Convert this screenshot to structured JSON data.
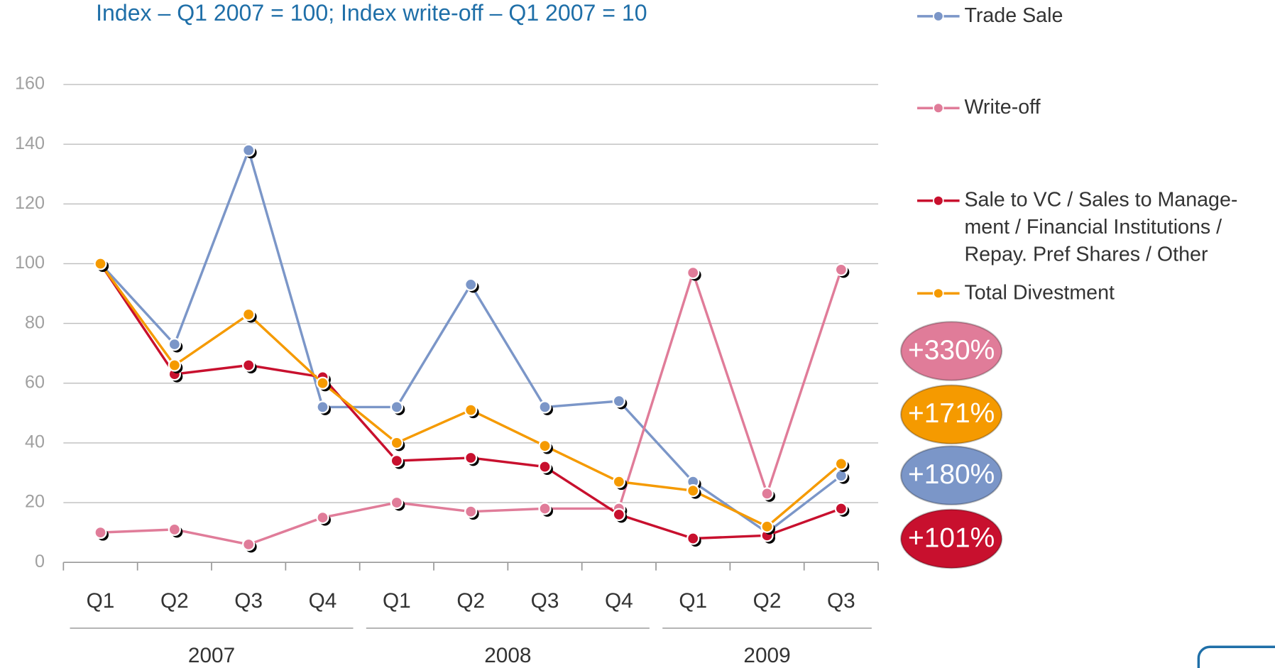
{
  "chart_data": {
    "type": "line",
    "subtitle": "Index – Q1 2007 = 100; Index write-off – Q1 2007 = 10",
    "categories": [
      "Q1",
      "Q2",
      "Q3",
      "Q4",
      "Q1",
      "Q2",
      "Q3",
      "Q4",
      "Q1",
      "Q2",
      "Q3"
    ],
    "group_labels": [
      "2007",
      "2008",
      "2009"
    ],
    "ylim": [
      0,
      160
    ],
    "yticks": [
      0,
      20,
      40,
      60,
      80,
      100,
      120,
      140,
      160
    ],
    "grid": true,
    "legend": "right",
    "series": [
      {
        "name": "Trade Sale",
        "color": "#7b96c8",
        "values": [
          100,
          73,
          138,
          52,
          52,
          93,
          52,
          54,
          27,
          10,
          29
        ]
      },
      {
        "name": "Write-off",
        "color": "#e07c99",
        "values": [
          10,
          11,
          6,
          15,
          20,
          17,
          18,
          18,
          97,
          23,
          98
        ]
      },
      {
        "name": "Sale to VC / Sales to Manage-\nment / Financial Institutions /\nRepay. Pref Shares / Other",
        "color": "#c8102e",
        "values": [
          100,
          63,
          66,
          62,
          34,
          35,
          32,
          16,
          8,
          9,
          18
        ]
      },
      {
        "name": "Total Divestment",
        "color": "#f59a00",
        "values": [
          100,
          66,
          83,
          60,
          40,
          51,
          39,
          27,
          24,
          12,
          33
        ]
      }
    ],
    "annotations": [
      {
        "text": "+330%",
        "color": "#e07c99"
      },
      {
        "text": "+171%",
        "color": "#f59a00"
      },
      {
        "text": "+180%",
        "color": "#7b96c8"
      },
      {
        "text": "+101%",
        "color": "#c8102e"
      }
    ]
  }
}
